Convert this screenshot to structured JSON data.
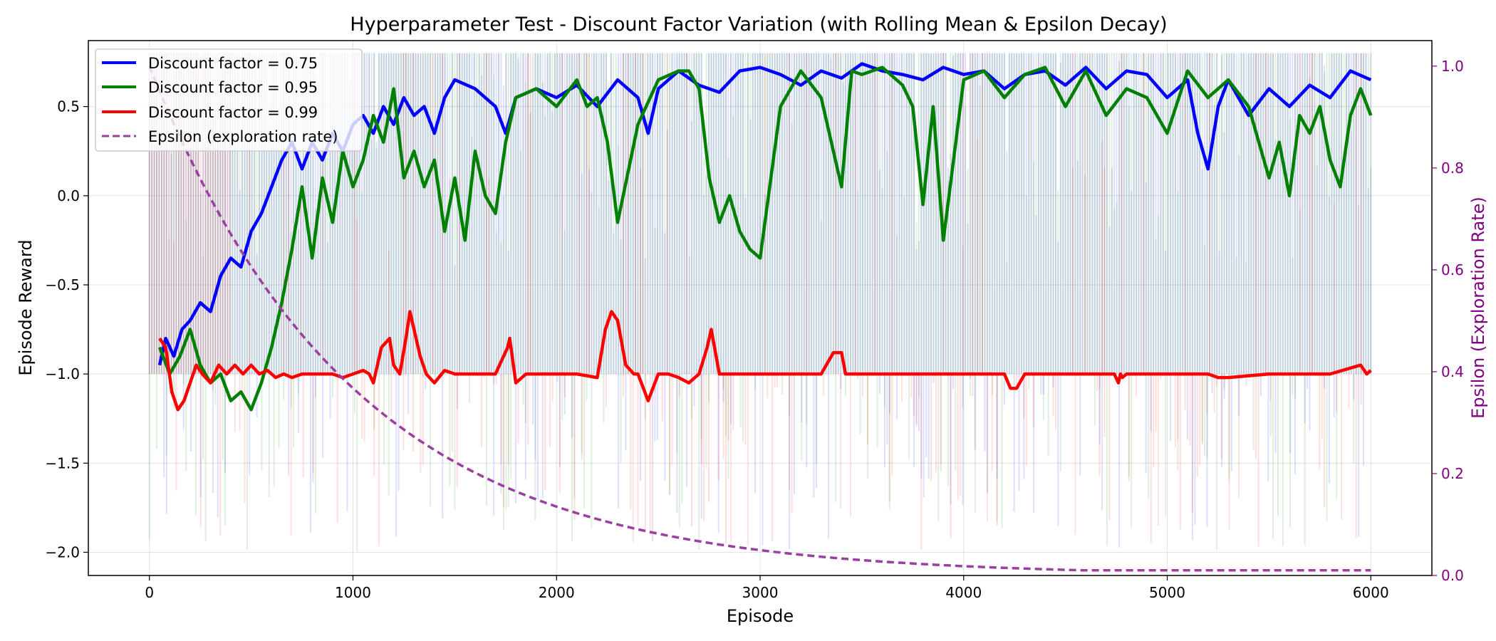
{
  "chart_data": {
    "type": "line",
    "title": "Hyperparameter Test - Discount Factor Variation (with Rolling Mean & Epsilon Decay)",
    "xlabel": "Episode",
    "ylabel": "Episode Reward",
    "y2label": "Epsilon (Exploration Rate)",
    "xlim": [
      -300,
      6300
    ],
    "ylim": [
      -2.13,
      0.87
    ],
    "y2lim": [
      0.0,
      1.05
    ],
    "xticks": [
      0,
      1000,
      2000,
      3000,
      4000,
      5000,
      6000
    ],
    "yticks": [
      -2.0,
      -1.5,
      -1.0,
      -0.5,
      0.0,
      0.5
    ],
    "y2ticks": [
      0.0,
      0.2,
      0.4,
      0.6,
      0.8,
      1.0
    ],
    "grid": true,
    "legend_position": "top-left",
    "colors": {
      "axis2": "#800080",
      "epsilon": "#9b3fa0"
    },
    "series": [
      {
        "name": "Discount factor = 0.75",
        "color": "#0000ff",
        "raw_min": -2.0,
        "raw_max": 0.8,
        "x": [
          50,
          80,
          120,
          160,
          200,
          250,
          300,
          350,
          400,
          450,
          500,
          550,
          600,
          650,
          700,
          750,
          800,
          850,
          900,
          950,
          1000,
          1050,
          1100,
          1150,
          1200,
          1250,
          1300,
          1350,
          1400,
          1450,
          1500,
          1600,
          1700,
          1750,
          1800,
          1900,
          2000,
          2100,
          2200,
          2300,
          2400,
          2450,
          2500,
          2600,
          2700,
          2800,
          2900,
          3000,
          3100,
          3200,
          3300,
          3400,
          3500,
          3600,
          3700,
          3800,
          3900,
          4000,
          4100,
          4200,
          4300,
          4400,
          4500,
          4600,
          4700,
          4800,
          4900,
          5000,
          5100,
          5150,
          5200,
          5250,
          5300,
          5400,
          5500,
          5600,
          5700,
          5800,
          5900,
          6000
        ],
        "y": [
          -0.95,
          -0.8,
          -0.9,
          -0.75,
          -0.7,
          -0.6,
          -0.65,
          -0.45,
          -0.35,
          -0.4,
          -0.2,
          -0.1,
          0.05,
          0.2,
          0.3,
          0.15,
          0.3,
          0.2,
          0.35,
          0.25,
          0.4,
          0.45,
          0.35,
          0.5,
          0.4,
          0.55,
          0.45,
          0.5,
          0.35,
          0.55,
          0.65,
          0.6,
          0.5,
          0.35,
          0.55,
          0.6,
          0.55,
          0.62,
          0.5,
          0.65,
          0.55,
          0.35,
          0.6,
          0.7,
          0.62,
          0.58,
          0.7,
          0.72,
          0.68,
          0.62,
          0.7,
          0.66,
          0.74,
          0.7,
          0.68,
          0.65,
          0.72,
          0.68,
          0.7,
          0.6,
          0.68,
          0.7,
          0.62,
          0.72,
          0.6,
          0.7,
          0.68,
          0.55,
          0.65,
          0.35,
          0.15,
          0.5,
          0.65,
          0.45,
          0.6,
          0.5,
          0.62,
          0.55,
          0.7,
          0.65
        ]
      },
      {
        "name": "Discount factor = 0.95",
        "color": "#008000",
        "raw_min": -2.0,
        "raw_max": 0.8,
        "x": [
          50,
          100,
          150,
          200,
          250,
          300,
          350,
          400,
          450,
          500,
          550,
          600,
          650,
          700,
          750,
          800,
          850,
          900,
          950,
          1000,
          1050,
          1100,
          1150,
          1200,
          1250,
          1300,
          1350,
          1400,
          1450,
          1500,
          1550,
          1600,
          1650,
          1700,
          1750,
          1800,
          1900,
          2000,
          2100,
          2150,
          2200,
          2250,
          2300,
          2400,
          2500,
          2600,
          2650,
          2700,
          2750,
          2800,
          2850,
          2900,
          2950,
          3000,
          3100,
          3200,
          3300,
          3350,
          3400,
          3450,
          3500,
          3600,
          3700,
          3750,
          3800,
          3850,
          3900,
          4000,
          4100,
          4200,
          4300,
          4400,
          4500,
          4600,
          4700,
          4800,
          4900,
          5000,
          5100,
          5200,
          5300,
          5400,
          5500,
          5550,
          5600,
          5650,
          5700,
          5750,
          5800,
          5850,
          5900,
          5950,
          6000
        ],
        "y": [
          -0.85,
          -1.0,
          -0.9,
          -0.75,
          -0.95,
          -1.05,
          -1.0,
          -1.15,
          -1.1,
          -1.2,
          -1.05,
          -0.85,
          -0.6,
          -0.3,
          0.05,
          -0.35,
          0.1,
          -0.15,
          0.25,
          0.05,
          0.2,
          0.45,
          0.3,
          0.6,
          0.1,
          0.25,
          0.05,
          0.2,
          -0.2,
          0.1,
          -0.25,
          0.25,
          0.0,
          -0.1,
          0.3,
          0.55,
          0.6,
          0.5,
          0.65,
          0.5,
          0.55,
          0.3,
          -0.15,
          0.4,
          0.65,
          0.7,
          0.7,
          0.6,
          0.1,
          -0.15,
          0.0,
          -0.2,
          -0.3,
          -0.35,
          0.5,
          0.7,
          0.55,
          0.3,
          0.05,
          0.7,
          0.68,
          0.72,
          0.62,
          0.5,
          -0.05,
          0.5,
          -0.25,
          0.65,
          0.7,
          0.55,
          0.68,
          0.72,
          0.5,
          0.7,
          0.45,
          0.6,
          0.55,
          0.35,
          0.7,
          0.55,
          0.65,
          0.5,
          0.1,
          0.3,
          0.0,
          0.45,
          0.35,
          0.5,
          0.2,
          0.05,
          0.45,
          0.6,
          0.45
        ]
      },
      {
        "name": "Discount factor = 0.99",
        "color": "#ff0000",
        "raw_min": -2.0,
        "raw_max": 0.8,
        "x": [
          50,
          80,
          110,
          140,
          170,
          200,
          230,
          260,
          300,
          340,
          380,
          420,
          460,
          500,
          540,
          580,
          620,
          660,
          700,
          750,
          800,
          850,
          900,
          950,
          1000,
          1050,
          1080,
          1100,
          1140,
          1180,
          1200,
          1230,
          1260,
          1280,
          1300,
          1330,
          1360,
          1400,
          1450,
          1500,
          1600,
          1700,
          1760,
          1770,
          1800,
          1850,
          1900,
          2000,
          2100,
          2200,
          2240,
          2270,
          2300,
          2340,
          2380,
          2400,
          2450,
          2500,
          2550,
          2600,
          2650,
          2700,
          2740,
          2760,
          2800,
          2850,
          3000,
          3100,
          3200,
          3300,
          3360,
          3400,
          3420,
          3500,
          3700,
          3900,
          4000,
          4100,
          4200,
          4230,
          4260,
          4300,
          4600,
          4740,
          4760,
          4770,
          4780,
          4800,
          5000,
          5200,
          5250,
          5300,
          5500,
          5800,
          5950,
          5980,
          6000
        ],
        "y": [
          -0.8,
          -0.85,
          -1.1,
          -1.2,
          -1.15,
          -1.05,
          -0.95,
          -1.0,
          -1.05,
          -0.95,
          -1.0,
          -0.95,
          -1.0,
          -0.95,
          -1.0,
          -0.98,
          -1.02,
          -1.0,
          -1.02,
          -1.0,
          -1.0,
          -1.0,
          -1.0,
          -1.02,
          -1.0,
          -0.98,
          -1.0,
          -1.05,
          -0.85,
          -0.8,
          -0.95,
          -1.0,
          -0.8,
          -0.65,
          -0.75,
          -0.9,
          -1.0,
          -1.05,
          -0.98,
          -1.0,
          -1.0,
          -1.0,
          -0.85,
          -0.8,
          -1.05,
          -1.0,
          -1.0,
          -1.0,
          -1.0,
          -1.02,
          -0.75,
          -0.65,
          -0.7,
          -0.95,
          -1.0,
          -1.0,
          -1.15,
          -1.0,
          -1.0,
          -1.02,
          -1.05,
          -1.0,
          -0.85,
          -0.75,
          -1.0,
          -1.0,
          -1.0,
          -1.0,
          -1.0,
          -1.0,
          -0.88,
          -0.88,
          -1.0,
          -1.0,
          -1.0,
          -1.0,
          -1.0,
          -1.0,
          -1.0,
          -1.08,
          -1.08,
          -1.0,
          -1.0,
          -1.0,
          -1.05,
          -1.0,
          -1.02,
          -1.0,
          -1.0,
          -1.0,
          -1.02,
          -1.02,
          -1.0,
          -1.0,
          -0.95,
          -1.0,
          -0.98
        ]
      }
    ],
    "epsilon": {
      "name": "Epsilon (exploration rate)",
      "start": 1.0,
      "decay_per_episode": 0.999,
      "min": 0.01,
      "episodes": 6000
    }
  }
}
